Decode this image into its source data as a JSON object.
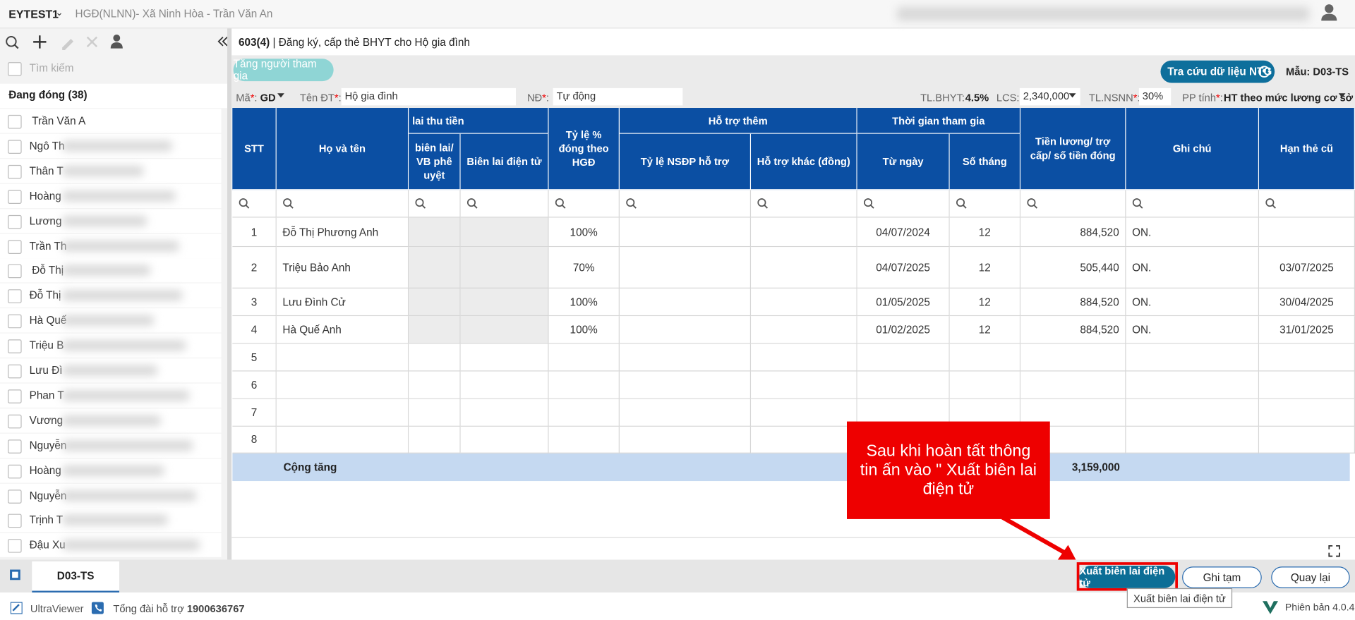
{
  "header": {
    "app": "EYTEST1",
    "context": "HGĐ(NLNN)- Xã Ninh Hòa - Trần Văn An"
  },
  "sidebar": {
    "search": "Tìm kiếm",
    "group": "Đang đóng",
    "count": "(38)",
    "items": [
      "Trần Văn A",
      "Ngô Th",
      "Thân T",
      "Hoàng",
      "Lương",
      "Trần Th",
      "Đỗ Thị",
      "Đỗ Thị",
      "Hà Quế",
      "Triệu B",
      "Lưu Đì",
      "Phan T",
      "Vương",
      "Nguyễn",
      "Hoàng",
      "Nguyễn",
      "Trịnh T",
      "Đậu Xu"
    ]
  },
  "form": {
    "code": "603(4)",
    "title": "| Đăng ký, cấp thẻ BHYT cho Hộ gia đình",
    "add_button": "Tăng người tham gia",
    "lookup_button": "Tra cứu dữ liệu NTG",
    "template": "Mẫu: D03-TS",
    "fields": [
      {
        "label": "Mã",
        "star": "*",
        "colon": ":",
        "value": "GD"
      },
      {
        "label": "Tên ĐT",
        "star": "*",
        "colon": ":",
        "value": "Hộ gia đình"
      },
      {
        "label": "NĐ",
        "star": "*",
        "colon": ":",
        "value": "Tự động"
      },
      {
        "label": "TL.BHYT:",
        "value": "4.5%"
      },
      {
        "label": "LCS:",
        "value": "2,340,000"
      },
      {
        "label": "TL.NSNN",
        "star": "*",
        "colon": ":",
        "value": "30%"
      },
      {
        "label": "PP tính",
        "star": "*",
        "colon": ":",
        "value": "HT theo mức lương cơ sở"
      }
    ]
  },
  "table": {
    "groups": [
      "lai thu tiền",
      "Hỗ trợ thêm",
      "Thời gian tham gia"
    ],
    "columns": [
      "STT",
      "Họ và tên",
      "biên lai/ VB phê uyệt",
      "Biên lai điện tử",
      "Tỷ lệ % đóng theo HGĐ",
      "Tỷ lệ NSĐP hỗ trợ",
      "Hỗ trợ khác (đồng)",
      "Từ ngày",
      "Số tháng",
      "Tiền lương/ trợ cấp/ số tiền đóng",
      "Ghi chú",
      "Hạn thẻ cũ"
    ],
    "rows": [
      {
        "stt": "1",
        "name": "Đỗ Thị Phương Anh",
        "rate": "100%",
        "from": "04/07/2024",
        "months": "12",
        "amount": "884,520",
        "note": "ON."
      },
      {
        "stt": "2",
        "name": "Triệu Bảo Anh",
        "rate": "70%",
        "from": "04/07/2025",
        "months": "12",
        "amount": "505,440",
        "note": "ON.",
        "old_card": "03/07/2025"
      },
      {
        "stt": "3",
        "name": "Lưu Đình Cử",
        "rate": "100%",
        "from": "01/05/2025",
        "months": "12",
        "amount": "884,520",
        "note": "ON.",
        "old_card": "30/04/2025"
      },
      {
        "stt": "4",
        "name": "Hà Quế Anh",
        "rate": "100%",
        "from": "01/02/2025",
        "months": "12",
        "amount": "884,520",
        "note": "ON.",
        "old_card": "31/01/2025"
      },
      {
        "stt": "5"
      },
      {
        "stt": "6"
      },
      {
        "stt": "7"
      },
      {
        "stt": "8"
      }
    ],
    "total_label": "Cộng tăng",
    "total": "3,159,000"
  },
  "callout": "Sau khi hoàn tất thông tin ấn vào \" Xuất biên lai điện tử",
  "footer": {
    "tab": "D03-TS",
    "export_button": "Xuất biên lai điện tử",
    "save_button": "Ghi tạm",
    "back_button": "Quay lại",
    "tooltip": "Xuất biên lai điện tử"
  },
  "status": {
    "remote": "UltraViewer",
    "hotline_label": "Tổng đài hỗ trợ",
    "hotline": "1900636767",
    "version": "Phiên bản 4.0.4"
  }
}
